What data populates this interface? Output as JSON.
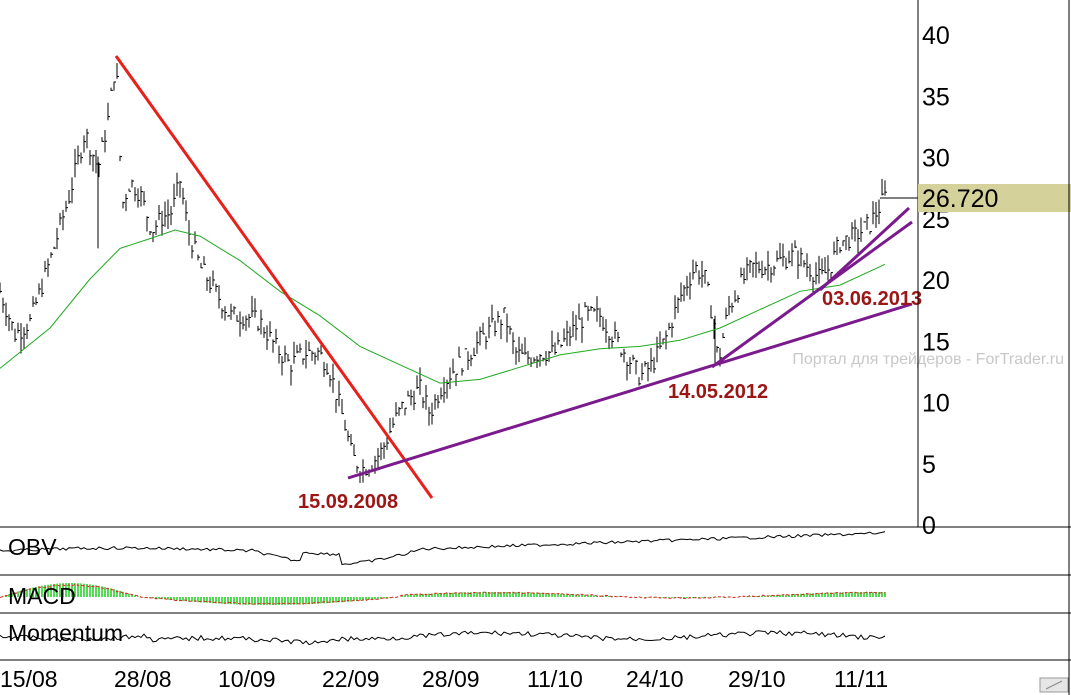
{
  "chart_data": {
    "type": "line",
    "main": {
      "yticks": [
        0,
        5,
        10,
        15,
        20,
        25,
        30,
        35,
        40
      ],
      "ylim": [
        0,
        42
      ],
      "last_price": "26.720",
      "price": [
        [
          0,
          19
        ],
        [
          15,
          15.5
        ],
        [
          30,
          16.5
        ],
        [
          50,
          21.5
        ],
        [
          70,
          27
        ],
        [
          85,
          32
        ],
        [
          98,
          29
        ],
        [
          108,
          33
        ],
        [
          116,
          38
        ],
        [
          122,
          26
        ],
        [
          130,
          28
        ],
        [
          140,
          27
        ],
        [
          152,
          24
        ],
        [
          162,
          25
        ],
        [
          172,
          25.5
        ],
        [
          180,
          28
        ],
        [
          188,
          24
        ],
        [
          200,
          21
        ],
        [
          215,
          19
        ],
        [
          230,
          17
        ],
        [
          245,
          17
        ],
        [
          260,
          16.5
        ],
        [
          275,
          14.5
        ],
        [
          290,
          13
        ],
        [
          305,
          14
        ],
        [
          318,
          14
        ],
        [
          328,
          13
        ],
        [
          335,
          11
        ],
        [
          345,
          8
        ],
        [
          352,
          5.5
        ],
        [
          362,
          4.5
        ],
        [
          372,
          5
        ],
        [
          382,
          6
        ],
        [
          392,
          8
        ],
        [
          402,
          9.5
        ],
        [
          412,
          10.5
        ],
        [
          420,
          11
        ],
        [
          430,
          9
        ],
        [
          440,
          11
        ],
        [
          452,
          12.5
        ],
        [
          465,
          13.5
        ],
        [
          480,
          15
        ],
        [
          492,
          16
        ],
        [
          505,
          17
        ],
        [
          515,
          14
        ],
        [
          525,
          13.5
        ],
        [
          540,
          14
        ],
        [
          555,
          14
        ],
        [
          570,
          15.5
        ],
        [
          585,
          17
        ],
        [
          600,
          17
        ],
        [
          612,
          15.5
        ],
        [
          625,
          14
        ],
        [
          640,
          12
        ],
        [
          652,
          13
        ],
        [
          665,
          15
        ],
        [
          680,
          18.5
        ],
        [
          695,
          21
        ],
        [
          705,
          20
        ],
        [
          715,
          16
        ],
        [
          718,
          13
        ],
        [
          728,
          17.5
        ],
        [
          740,
          19.5
        ],
        [
          752,
          21
        ],
        [
          765,
          21
        ],
        [
          780,
          21.5
        ],
        [
          795,
          22
        ],
        [
          808,
          21
        ],
        [
          820,
          20
        ],
        [
          830,
          21
        ],
        [
          840,
          23
        ],
        [
          855,
          23.5
        ],
        [
          870,
          24.5
        ],
        [
          885,
          26.7
        ]
      ],
      "moving_average": [
        [
          0,
          12.7
        ],
        [
          50,
          16
        ],
        [
          90,
          20
        ],
        [
          120,
          22.5
        ],
        [
          150,
          23.3
        ],
        [
          175,
          24
        ],
        [
          200,
          23.5
        ],
        [
          240,
          21.5
        ],
        [
          280,
          19
        ],
        [
          320,
          17
        ],
        [
          360,
          14.5
        ],
        [
          400,
          13
        ],
        [
          440,
          11.5
        ],
        [
          480,
          11.8
        ],
        [
          520,
          12.8
        ],
        [
          560,
          13.8
        ],
        [
          600,
          14.3
        ],
        [
          640,
          14.5
        ],
        [
          680,
          15
        ],
        [
          720,
          16
        ],
        [
          760,
          17.5
        ],
        [
          800,
          19
        ],
        [
          840,
          19.5
        ],
        [
          885,
          21.2
        ]
      ]
    },
    "annotations": [
      {
        "text": "15.09.2008"
      },
      {
        "text": "14.05.2012"
      },
      {
        "text": "03.06.2013"
      }
    ],
    "indicators": [
      {
        "name": "OBV"
      },
      {
        "name": "MACD"
      },
      {
        "name": "Momentum"
      }
    ],
    "xticks": [
      "15/08",
      "28/08",
      "10/09",
      "22/09",
      "28/09",
      "11/10",
      "24/10",
      "29/10",
      "11/11"
    ],
    "watermark": "Портал для трейдеров - ForTrader.ru",
    "colors": {
      "price": "#000000",
      "moving_average": "#1faa1f",
      "downtrend": "#e8201a",
      "uptrend": "#7a1a8c",
      "annotation": "#9c1616",
      "last_price_bg": "#d4d19a",
      "macd_hist": "#1ecc1e",
      "macd_signal": "#e02020"
    }
  }
}
